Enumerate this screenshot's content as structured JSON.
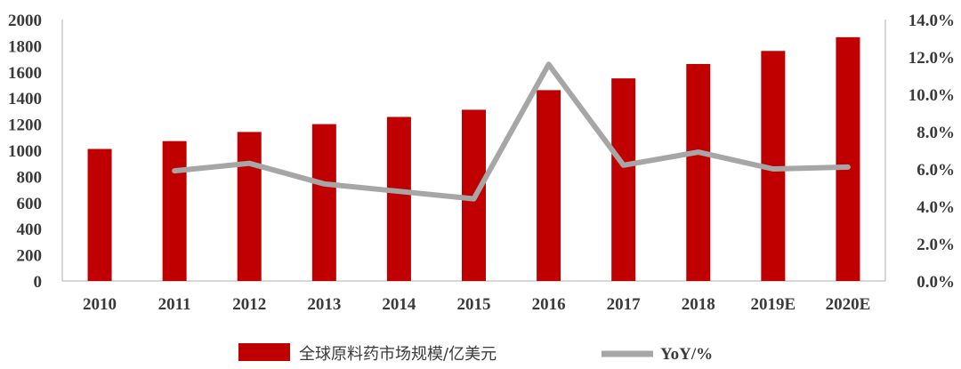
{
  "chart_data": {
    "type": "bar",
    "categories": [
      "2010",
      "2011",
      "2012",
      "2013",
      "2014",
      "2015",
      "2016",
      "2017",
      "2018",
      "2019E",
      "2020E"
    ],
    "series": [
      {
        "name": "全球原料药市场规模/亿美元",
        "type": "bar",
        "axis": "left",
        "color": "#c00000",
        "values": [
          1010,
          1070,
          1140,
          1200,
          1255,
          1310,
          1460,
          1550,
          1660,
          1760,
          1865
        ]
      },
      {
        "name": "YoY/%",
        "type": "line",
        "axis": "right",
        "color": "#a6a6a6",
        "values": [
          null,
          5.9,
          6.3,
          5.2,
          4.8,
          4.4,
          11.6,
          6.2,
          6.9,
          6.0,
          6.1
        ]
      }
    ],
    "y_left": {
      "min": 0,
      "max": 2000,
      "step": 200,
      "tick_labels": [
        "0",
        "200",
        "400",
        "600",
        "800",
        "1000",
        "1200",
        "1400",
        "1600",
        "1800",
        "2000"
      ]
    },
    "y_right": {
      "min": 0,
      "max": 14,
      "step": 2,
      "tick_labels": [
        "0.0%",
        "2.0%",
        "4.0%",
        "6.0%",
        "8.0%",
        "10.0%",
        "12.0%",
        "14.0%"
      ]
    },
    "legend_position": "bottom",
    "grid": false,
    "title": "",
    "xlabel": "",
    "ylabel": ""
  }
}
